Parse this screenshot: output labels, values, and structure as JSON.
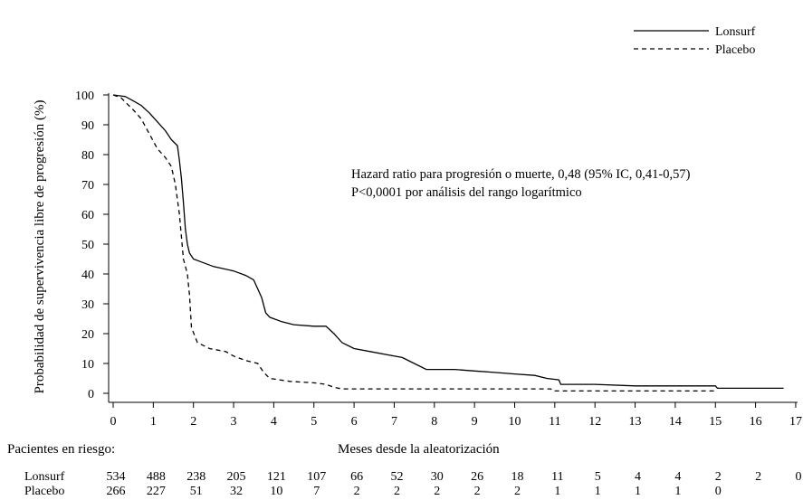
{
  "chart_data": {
    "type": "line",
    "xlabel": "Meses desde la aleatorización",
    "ylabel": "Probabilidad de supervivencia libre de progresión (%)",
    "xlim": [
      0,
      17
    ],
    "ylim": [
      0,
      100
    ],
    "x_ticks": [
      0,
      1,
      2,
      3,
      4,
      5,
      6,
      7,
      8,
      9,
      10,
      11,
      12,
      13,
      14,
      15,
      16,
      17
    ],
    "y_ticks": [
      0,
      10,
      20,
      30,
      40,
      50,
      60,
      70,
      80,
      90,
      100
    ],
    "grid": false,
    "legend_position": "top-right",
    "annotation": [
      "Hazard ratio para progresión o muerte, 0,48 (95% IC, 0,41-0,57)",
      "P<0,0001 por análisis del rango logarítmico"
    ],
    "series": [
      {
        "name": "Lonsurf",
        "line_style": "solid",
        "points": [
          [
            0,
            100
          ],
          [
            0.3,
            99.5
          ],
          [
            0.5,
            98
          ],
          [
            0.7,
            96.5
          ],
          [
            0.9,
            94
          ],
          [
            1.1,
            91
          ],
          [
            1.3,
            88
          ],
          [
            1.45,
            85
          ],
          [
            1.6,
            83
          ],
          [
            1.65,
            78
          ],
          [
            1.7,
            72
          ],
          [
            1.75,
            64
          ],
          [
            1.8,
            55
          ],
          [
            1.85,
            50
          ],
          [
            1.9,
            47
          ],
          [
            2.0,
            45
          ],
          [
            2.2,
            44
          ],
          [
            2.5,
            42.5
          ],
          [
            3.0,
            41
          ],
          [
            3.3,
            39.5
          ],
          [
            3.5,
            38
          ],
          [
            3.6,
            35
          ],
          [
            3.7,
            32
          ],
          [
            3.8,
            27
          ],
          [
            3.9,
            25.5
          ],
          [
            4.2,
            24
          ],
          [
            4.5,
            23
          ],
          [
            5.0,
            22.5
          ],
          [
            5.3,
            22.5
          ],
          [
            5.5,
            20
          ],
          [
            5.7,
            17
          ],
          [
            6.0,
            15
          ],
          [
            6.4,
            14
          ],
          [
            6.8,
            13
          ],
          [
            7.2,
            12
          ],
          [
            7.5,
            10
          ],
          [
            7.8,
            8
          ],
          [
            8.5,
            8
          ],
          [
            9.0,
            7.5
          ],
          [
            9.5,
            7
          ],
          [
            10.0,
            6.5
          ],
          [
            10.5,
            6
          ],
          [
            10.8,
            5
          ],
          [
            11.1,
            4.5
          ],
          [
            11.15,
            3
          ],
          [
            12.0,
            3
          ],
          [
            13.0,
            2.5
          ],
          [
            14.0,
            2.5
          ],
          [
            15.0,
            2.5
          ],
          [
            15.05,
            1.7
          ],
          [
            16.7,
            1.7
          ]
        ]
      },
      {
        "name": "Placebo",
        "line_style": "dashed",
        "points": [
          [
            0,
            100
          ],
          [
            0.2,
            99
          ],
          [
            0.35,
            97
          ],
          [
            0.5,
            95
          ],
          [
            0.7,
            92
          ],
          [
            0.9,
            87
          ],
          [
            1.1,
            82
          ],
          [
            1.3,
            79
          ],
          [
            1.45,
            76
          ],
          [
            1.55,
            70
          ],
          [
            1.65,
            60
          ],
          [
            1.75,
            45
          ],
          [
            1.85,
            40
          ],
          [
            1.9,
            33
          ],
          [
            1.95,
            22
          ],
          [
            2.1,
            17
          ],
          [
            2.4,
            15
          ],
          [
            2.8,
            14
          ],
          [
            3.0,
            12.5
          ],
          [
            3.3,
            11
          ],
          [
            3.6,
            10
          ],
          [
            3.75,
            7
          ],
          [
            3.9,
            5
          ],
          [
            4.4,
            4
          ],
          [
            5.0,
            3.5
          ],
          [
            5.3,
            3
          ],
          [
            5.5,
            2
          ],
          [
            5.7,
            1.5
          ],
          [
            6.0,
            1.5
          ],
          [
            8.0,
            1.5
          ],
          [
            10.0,
            1.5
          ],
          [
            10.9,
            1.5
          ],
          [
            10.95,
            0.8
          ],
          [
            13.0,
            0.8
          ],
          [
            15.0,
            0.8
          ]
        ]
      }
    ],
    "at_risk": {
      "title": "Pacientes en riesgo:",
      "months": [
        0,
        1,
        2,
        3,
        4,
        5,
        6,
        7,
        8,
        9,
        10,
        11,
        12,
        13,
        14,
        15,
        16,
        17
      ],
      "rows": [
        {
          "label": "Lonsurf",
          "values": [
            "534",
            "488",
            "238",
            "205",
            "121",
            "107",
            "66",
            "52",
            "30",
            "26",
            "18",
            "11",
            "5",
            "4",
            "4",
            "2",
            "2",
            "0"
          ]
        },
        {
          "label": "Placebo",
          "values": [
            "266",
            "227",
            "51",
            "32",
            "10",
            "7",
            "2",
            "2",
            "2",
            "2",
            "2",
            "1",
            "1",
            "1",
            "1",
            "0"
          ]
        }
      ]
    }
  }
}
